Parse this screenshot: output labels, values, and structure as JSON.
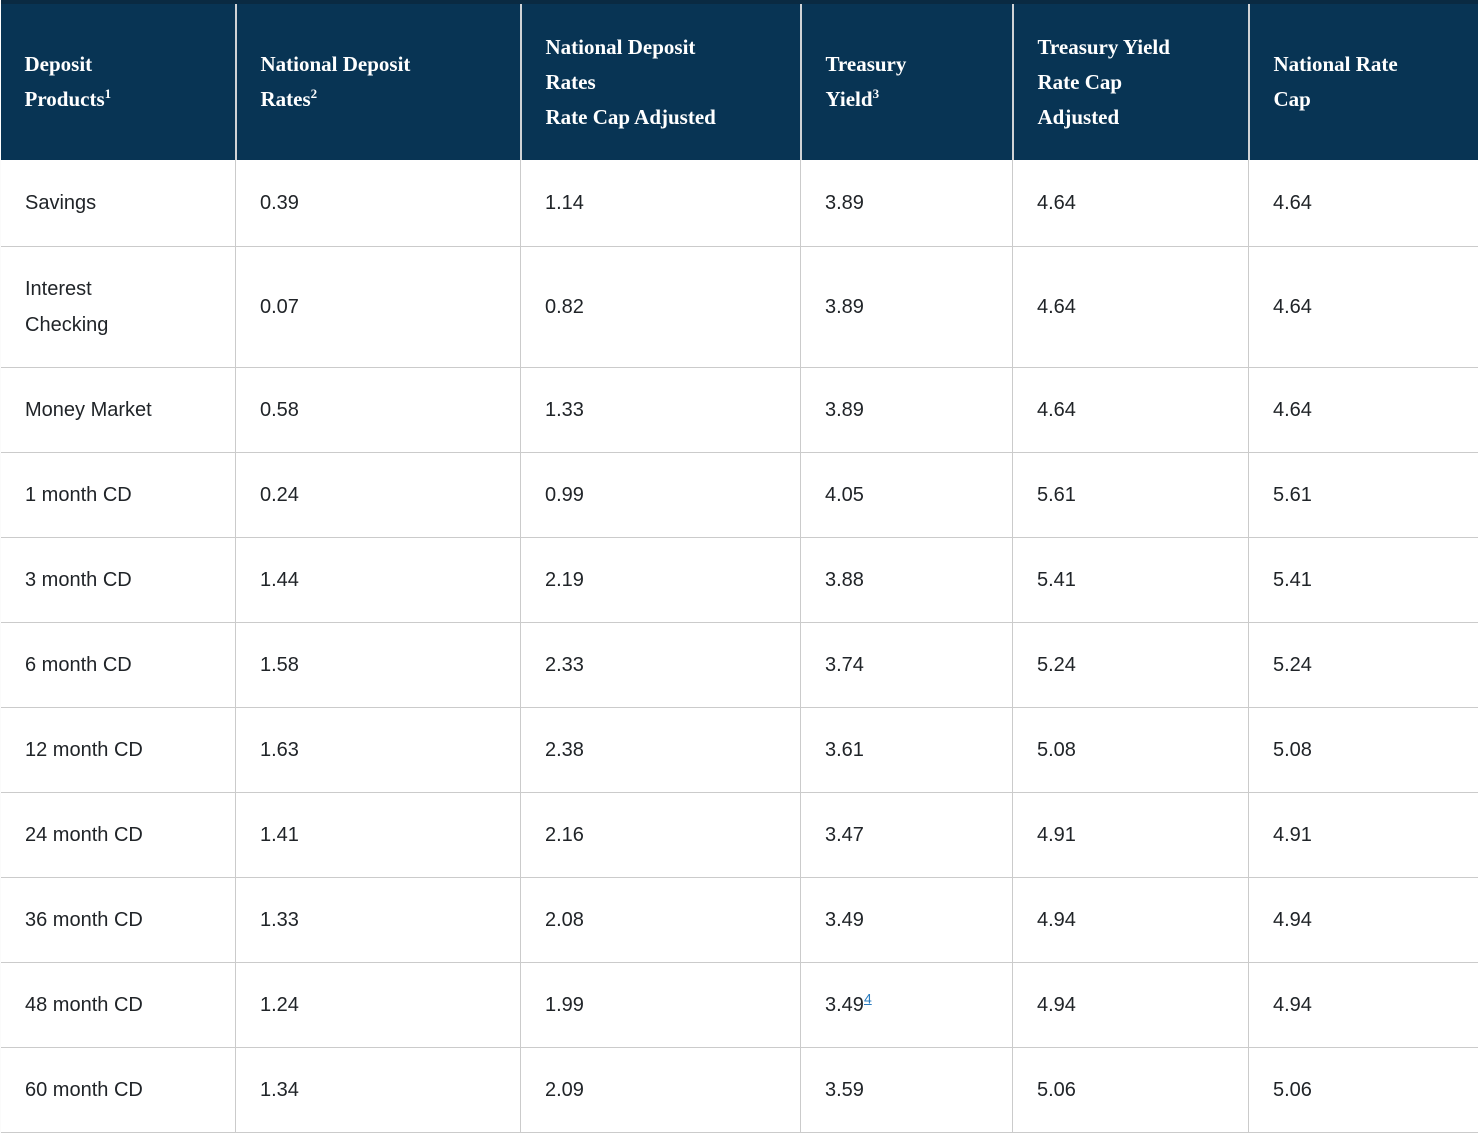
{
  "colors": {
    "header_background": "#083454",
    "header_top_border": "#0a2a42",
    "header_divider": "#d0d3d6",
    "grid_line": "#cbcbcb",
    "header_text": "#ffffff",
    "body_text": "#202428",
    "footnote_link": "#2b7cbf"
  },
  "chart_data": {
    "type": "table",
    "columns": [
      "Deposit Products 1",
      "National Deposit Rates 2",
      "National Deposit Rates Rate Cap Adjusted",
      "Treasury Yield 3",
      "Treasury Yield Rate Cap Adjusted",
      "National Rate Cap"
    ],
    "rows": [
      [
        "Savings",
        0.39,
        1.14,
        3.89,
        4.64,
        4.64
      ],
      [
        "Interest Checking",
        0.07,
        0.82,
        3.89,
        4.64,
        4.64
      ],
      [
        "Money Market",
        0.58,
        1.33,
        3.89,
        4.64,
        4.64
      ],
      [
        "1 month CD",
        0.24,
        0.99,
        4.05,
        5.61,
        5.61
      ],
      [
        "3 month CD",
        1.44,
        2.19,
        3.88,
        5.41,
        5.41
      ],
      [
        "6 month CD",
        1.58,
        2.33,
        3.74,
        5.24,
        5.24
      ],
      [
        "12 month CD",
        1.63,
        2.38,
        3.61,
        5.08,
        5.08
      ],
      [
        "24 month CD",
        1.41,
        2.16,
        3.47,
        4.91,
        4.91
      ],
      [
        "36 month CD",
        1.33,
        2.08,
        3.49,
        4.94,
        4.94
      ],
      [
        "48 month CD",
        1.24,
        1.99,
        3.49,
        4.94,
        4.94
      ],
      [
        "60 month CD",
        1.34,
        2.09,
        3.59,
        5.06,
        5.06
      ]
    ],
    "footnotes_markers": {
      "header": [
        "1",
        "2",
        "3"
      ],
      "cell": {
        "row": "48 month CD",
        "column": "Treasury Yield",
        "marker": "4",
        "is_link": true
      }
    }
  },
  "table": {
    "header": [
      {
        "lines": [
          "Deposit",
          "Products"
        ],
        "sup": "1"
      },
      {
        "lines": [
          "National Deposit",
          "Rates"
        ],
        "sup": "2"
      },
      {
        "lines": [
          "National Deposit",
          "Rates",
          "Rate Cap Adjusted"
        ],
        "sup": ""
      },
      {
        "lines": [
          "Treasury",
          "Yield"
        ],
        "sup": "3"
      },
      {
        "lines": [
          "Treasury Yield",
          "Rate Cap",
          "Adjusted"
        ],
        "sup": ""
      },
      {
        "lines": [
          "National Rate",
          "Cap"
        ],
        "sup": ""
      }
    ],
    "rows": [
      {
        "product_lines": [
          "Savings"
        ],
        "cells": [
          {
            "text": "0.39",
            "sup": ""
          },
          {
            "text": "1.14",
            "sup": ""
          },
          {
            "text": "3.89",
            "sup": ""
          },
          {
            "text": "4.64",
            "sup": ""
          },
          {
            "text": "4.64",
            "sup": ""
          }
        ]
      },
      {
        "product_lines": [
          "Interest",
          "Checking"
        ],
        "cells": [
          {
            "text": "0.07",
            "sup": ""
          },
          {
            "text": "0.82",
            "sup": ""
          },
          {
            "text": "3.89",
            "sup": ""
          },
          {
            "text": "4.64",
            "sup": ""
          },
          {
            "text": "4.64",
            "sup": ""
          }
        ]
      },
      {
        "product_lines": [
          "Money Market"
        ],
        "cells": [
          {
            "text": "0.58",
            "sup": ""
          },
          {
            "text": "1.33",
            "sup": ""
          },
          {
            "text": "3.89",
            "sup": ""
          },
          {
            "text": "4.64",
            "sup": ""
          },
          {
            "text": "4.64",
            "sup": ""
          }
        ]
      },
      {
        "product_lines": [
          "1 month CD"
        ],
        "cells": [
          {
            "text": "0.24",
            "sup": ""
          },
          {
            "text": "0.99",
            "sup": ""
          },
          {
            "text": "4.05",
            "sup": ""
          },
          {
            "text": "5.61",
            "sup": ""
          },
          {
            "text": "5.61",
            "sup": ""
          }
        ]
      },
      {
        "product_lines": [
          "3 month CD"
        ],
        "cells": [
          {
            "text": "1.44",
            "sup": ""
          },
          {
            "text": "2.19",
            "sup": ""
          },
          {
            "text": "3.88",
            "sup": ""
          },
          {
            "text": "5.41",
            "sup": ""
          },
          {
            "text": "5.41",
            "sup": ""
          }
        ]
      },
      {
        "product_lines": [
          "6 month CD"
        ],
        "cells": [
          {
            "text": "1.58",
            "sup": ""
          },
          {
            "text": "2.33",
            "sup": ""
          },
          {
            "text": "3.74",
            "sup": ""
          },
          {
            "text": "5.24",
            "sup": ""
          },
          {
            "text": "5.24",
            "sup": ""
          }
        ]
      },
      {
        "product_lines": [
          "12 month CD"
        ],
        "cells": [
          {
            "text": "1.63",
            "sup": ""
          },
          {
            "text": "2.38",
            "sup": ""
          },
          {
            "text": "3.61",
            "sup": ""
          },
          {
            "text": "5.08",
            "sup": ""
          },
          {
            "text": "5.08",
            "sup": ""
          }
        ]
      },
      {
        "product_lines": [
          "24 month CD"
        ],
        "cells": [
          {
            "text": "1.41",
            "sup": ""
          },
          {
            "text": "2.16",
            "sup": ""
          },
          {
            "text": "3.47",
            "sup": ""
          },
          {
            "text": "4.91",
            "sup": ""
          },
          {
            "text": "4.91",
            "sup": ""
          }
        ]
      },
      {
        "product_lines": [
          "36 month CD"
        ],
        "cells": [
          {
            "text": "1.33",
            "sup": ""
          },
          {
            "text": "2.08",
            "sup": ""
          },
          {
            "text": "3.49",
            "sup": ""
          },
          {
            "text": "4.94",
            "sup": ""
          },
          {
            "text": "4.94",
            "sup": ""
          }
        ]
      },
      {
        "product_lines": [
          "48 month CD"
        ],
        "cells": [
          {
            "text": "1.24",
            "sup": ""
          },
          {
            "text": "1.99",
            "sup": ""
          },
          {
            "text": "3.49",
            "sup": "4"
          },
          {
            "text": "4.94",
            "sup": ""
          },
          {
            "text": "4.94",
            "sup": ""
          }
        ]
      },
      {
        "product_lines": [
          "60 month CD"
        ],
        "cells": [
          {
            "text": "1.34",
            "sup": ""
          },
          {
            "text": "2.09",
            "sup": ""
          },
          {
            "text": "3.59",
            "sup": ""
          },
          {
            "text": "5.06",
            "sup": ""
          },
          {
            "text": "5.06",
            "sup": ""
          }
        ]
      }
    ]
  }
}
